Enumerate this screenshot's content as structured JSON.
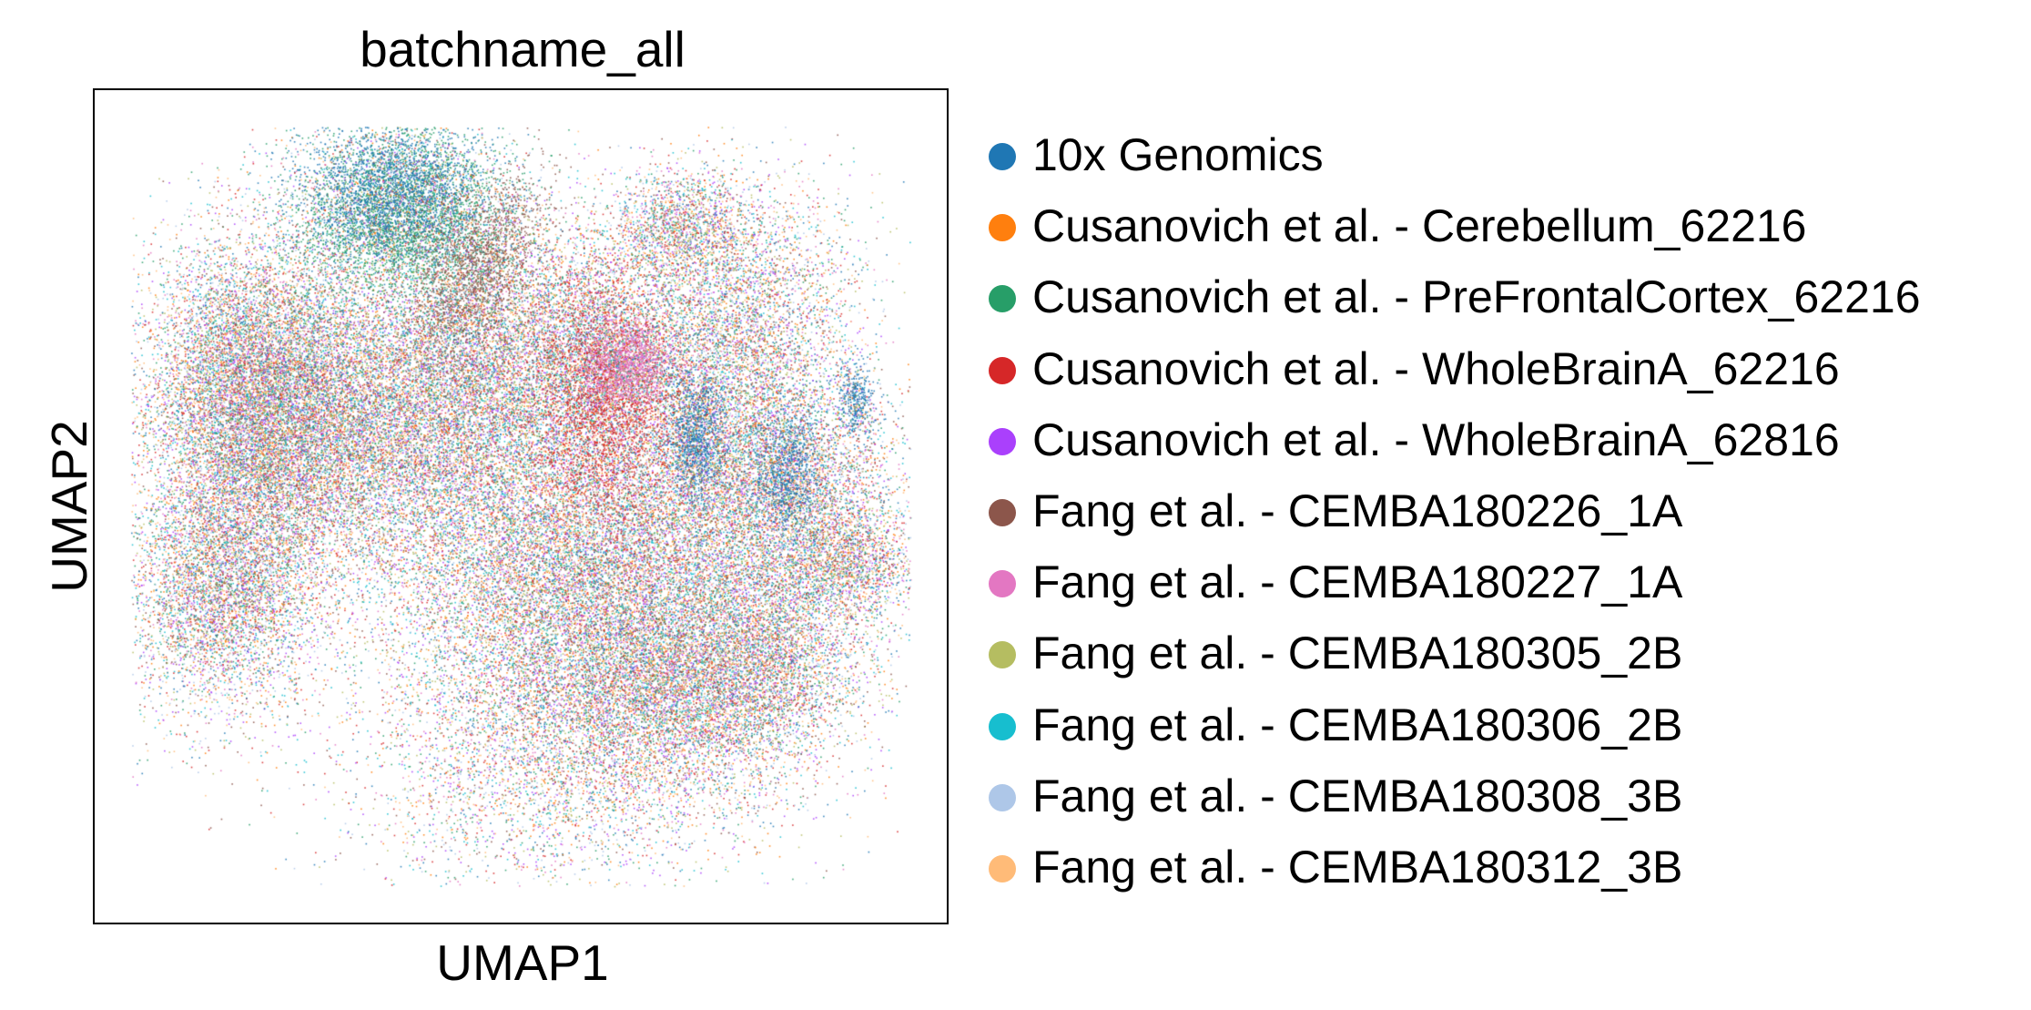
{
  "chart_data": {
    "type": "scatter",
    "title": "batchname_all",
    "xlabel": "UMAP1",
    "ylabel": "UMAP2",
    "ticks_shown": false,
    "grid": false,
    "legend_position": "right",
    "series": [
      {
        "name": "10x Genomics",
        "color": "#1f77b4"
      },
      {
        "name": "Cusanovich et al. - Cerebellum_62216",
        "color": "#ff7f0e"
      },
      {
        "name": "Cusanovich et al. - PreFrontalCortex_62216",
        "color": "#279e68"
      },
      {
        "name": "Cusanovich et al. - WholeBrainA_62216",
        "color": "#d62728"
      },
      {
        "name": "Cusanovich et al. - WholeBrainA_62816",
        "color": "#aa40fc"
      },
      {
        "name": "Fang et al. - CEMBA180226_1A",
        "color": "#8c564b"
      },
      {
        "name": "Fang et al. - CEMBA180227_1A",
        "color": "#e377c2"
      },
      {
        "name": "Fang et al. - CEMBA180305_2B",
        "color": "#b5bd61"
      },
      {
        "name": "Fang et al. - CEMBA180306_2B",
        "color": "#17becf"
      },
      {
        "name": "Fang et al. - CEMBA180308_3B",
        "color": "#aec7e8"
      },
      {
        "name": "Fang et al. - CEMBA180312_3B",
        "color": "#ffbb78"
      }
    ]
  }
}
